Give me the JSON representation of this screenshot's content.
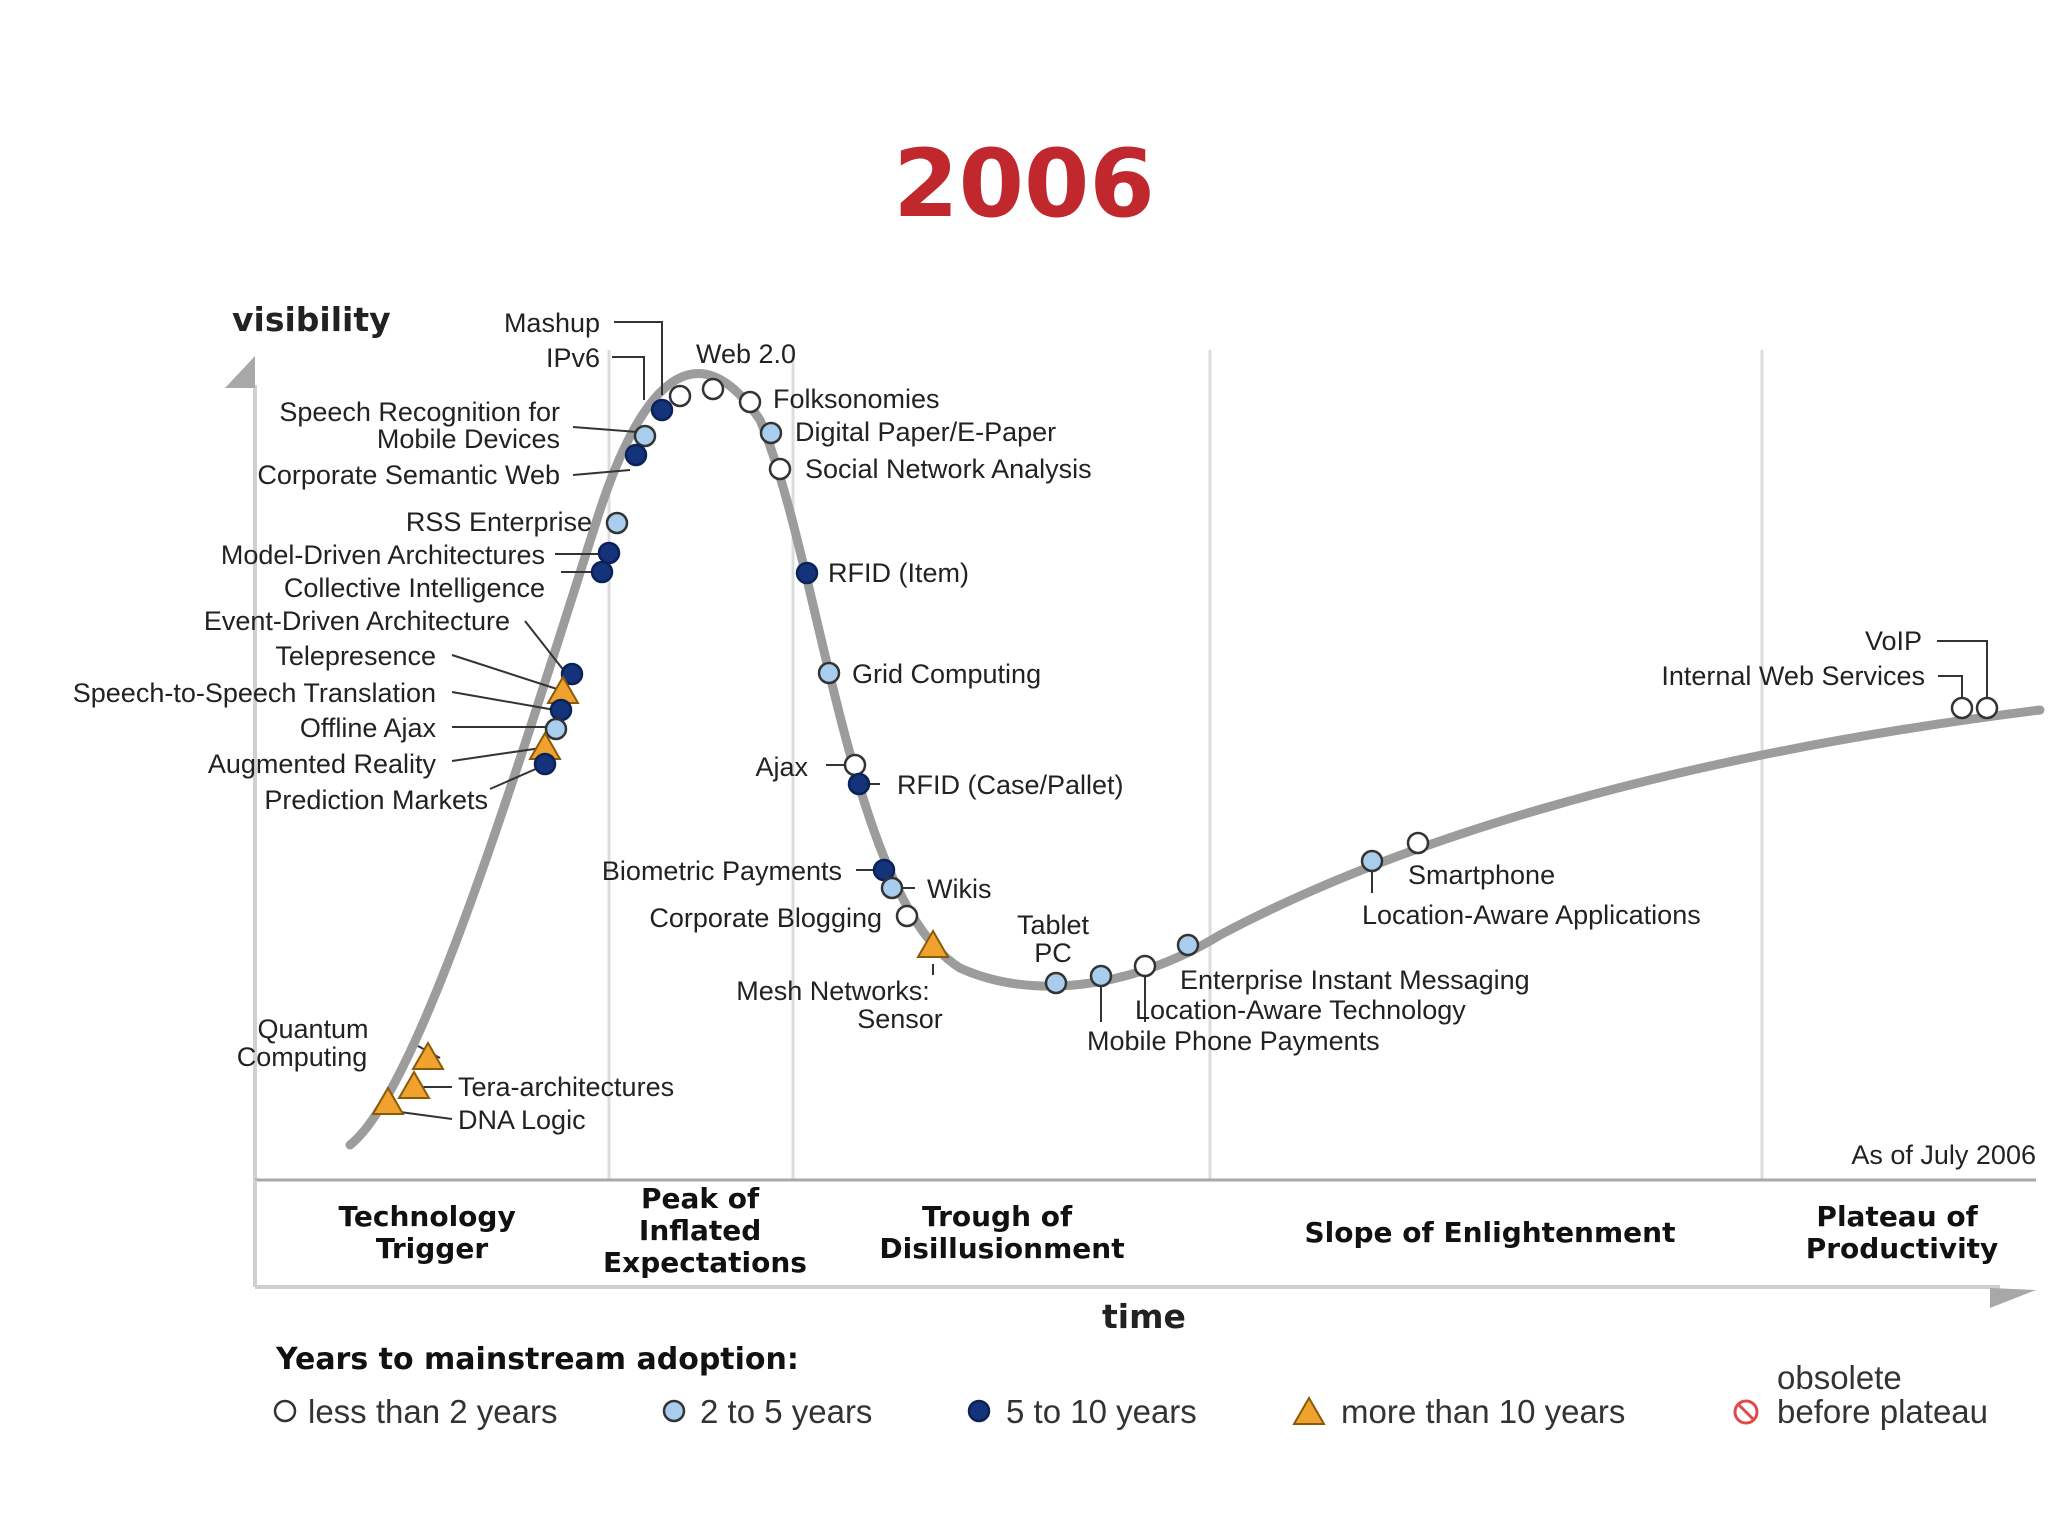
{
  "title": "2006",
  "chart_data": {
    "type": "scatter",
    "y_axis_label": "visibility",
    "x_axis_label": "time",
    "as_of": "As of July 2006",
    "phases": [
      {
        "lines": [
          "Technology",
          "Trigger"
        ]
      },
      {
        "lines": [
          "Peak of",
          "Inflated",
          "Expectations"
        ]
      },
      {
        "lines": [
          "Trough of",
          "Disillusionment"
        ]
      },
      {
        "lines": [
          "Slope of Enlightenment"
        ]
      },
      {
        "lines": [
          "Plateau of",
          "Productivity"
        ]
      }
    ],
    "legend": {
      "title": "Years to mainstream adoption:",
      "items": [
        {
          "category": "lt2",
          "label": "less than 2 years",
          "color": "#ffffff"
        },
        {
          "category": "2to5",
          "label": "2 to 5 years",
          "color": "#a9cdec"
        },
        {
          "category": "5to10",
          "label": "5 to 10 years",
          "color": "#14337a"
        },
        {
          "category": "gt10",
          "label": "more than 10 years",
          "color": "#f0a22e"
        },
        {
          "category": "obsolete",
          "label_line1": "obsolete",
          "label_line2": "before plateau",
          "color": "#e04a4a"
        }
      ]
    },
    "technologies": [
      {
        "name": "Mashup",
        "category": "5to10"
      },
      {
        "name": "IPv6",
        "category": "lt2"
      },
      {
        "name": "Web 2.0",
        "category": "lt2"
      },
      {
        "name": "Folksonomies",
        "category": "lt2"
      },
      {
        "name": "Speech Recognition for Mobile Devices",
        "category": "2to5"
      },
      {
        "name": "Digital Paper/E-Paper",
        "category": "2to5"
      },
      {
        "name": "Corporate Semantic Web",
        "category": "5to10"
      },
      {
        "name": "Social Network Analysis",
        "category": "lt2"
      },
      {
        "name": "RSS Enterprise",
        "category": "2to5"
      },
      {
        "name": "Model-Driven Architectures",
        "category": "5to10"
      },
      {
        "name": "Collective Intelligence",
        "category": "5to10"
      },
      {
        "name": "RFID (Item)",
        "category": "5to10"
      },
      {
        "name": "Event-Driven Architecture",
        "category": "5to10"
      },
      {
        "name": "Telepresence",
        "category": "gt10"
      },
      {
        "name": "Speech-to-Speech Translation",
        "category": "5to10"
      },
      {
        "name": "Grid Computing",
        "category": "2to5"
      },
      {
        "name": "Offline Ajax",
        "category": "2to5"
      },
      {
        "name": "Augmented Reality",
        "category": "gt10"
      },
      {
        "name": "Prediction Markets",
        "category": "5to10"
      },
      {
        "name": "Ajax",
        "category": "lt2"
      },
      {
        "name": "RFID (Case/Pallet)",
        "category": "5to10"
      },
      {
        "name": "Biometric Payments",
        "category": "5to10"
      },
      {
        "name": "Wikis",
        "category": "2to5"
      },
      {
        "name": "Corporate Blogging",
        "category": "lt2"
      },
      {
        "name": "Mesh Networks: Sensor",
        "category": "gt10"
      },
      {
        "name": "Tablet PC",
        "category": "2to5"
      },
      {
        "name": "Mobile Phone Payments",
        "category": "2to5"
      },
      {
        "name": "Location-Aware Technology",
        "category": "lt2"
      },
      {
        "name": "Enterprise Instant Messaging",
        "category": "2to5"
      },
      {
        "name": "Location-Aware Applications",
        "category": "2to5"
      },
      {
        "name": "Smartphone",
        "category": "lt2"
      },
      {
        "name": "Internal Web Services",
        "category": "lt2"
      },
      {
        "name": "VoIP",
        "category": "lt2"
      },
      {
        "name": "Quantum Computing",
        "category": "gt10"
      },
      {
        "name": "Tera-architectures",
        "category": "gt10"
      },
      {
        "name": "DNA Logic",
        "category": "gt10"
      }
    ]
  }
}
